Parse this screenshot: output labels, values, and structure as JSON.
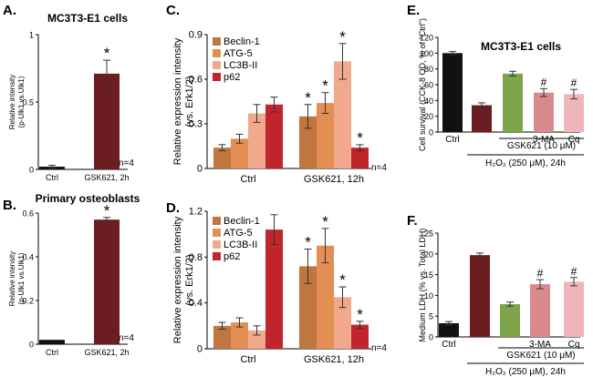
{
  "colors": {
    "black": "#111111",
    "maroon": "#6b1d22",
    "green": "#7ea54b",
    "pink": "#d98a8f",
    "lightpink": "#eeb6b8",
    "beclin": "#c0763f",
    "atg5": "#e38f54",
    "lc3b": "#f1a98d",
    "p62": "#c0252d",
    "error": "#333333"
  },
  "chart_data": [
    {
      "id": "A",
      "type": "bar",
      "panel_label": "A.",
      "title": "MC3T3-E1 cells",
      "ylabel": [
        "Relative intensity",
        "(p-Ulk1 vs.Ulk1)"
      ],
      "ylim": [
        0,
        1
      ],
      "yticks": [
        0,
        0.5,
        1
      ],
      "categories": [
        "Ctrl",
        "GSK621, 2h"
      ],
      "values": [
        0.02,
        0.71
      ],
      "errors": [
        0.01,
        0.1
      ],
      "stars": [
        "",
        "*"
      ],
      "colors": [
        "black",
        "maroon"
      ],
      "n_label": "n=4"
    },
    {
      "id": "B",
      "type": "bar",
      "panel_label": "B.",
      "title": "Primary osteoblasts",
      "ylabel": [
        "Relative intensity",
        "(p-Ulk1 vs.Ulk1)"
      ],
      "ylim": [
        0,
        0.6
      ],
      "yticks": [
        0,
        0.2,
        0.4,
        0.6
      ],
      "categories": [
        "Ctrl",
        "GSK621, 2h"
      ],
      "values": [
        0.02,
        0.57
      ],
      "errors": [
        0.005,
        0.01
      ],
      "stars": [
        "",
        "*"
      ],
      "colors": [
        "black",
        "maroon"
      ],
      "n_label": "n=4"
    },
    {
      "id": "C",
      "type": "bar",
      "panel_label": "C.",
      "ylabel": [
        "Relative expression intensity",
        "(vs. Erk1/2)"
      ],
      "ylim": [
        0,
        0.9
      ],
      "yticks": [
        0,
        0.3,
        0.6,
        0.9
      ],
      "categories": [
        "Ctrl",
        "GSK621, 12h"
      ],
      "legend": [
        "Beclin-1",
        "ATG-5",
        "LC3B-II",
        "p62"
      ],
      "series_colors": [
        "beclin",
        "atg5",
        "lc3b",
        "p62"
      ],
      "series": [
        {
          "name": "Beclin-1",
          "values": [
            0.14,
            0.35
          ],
          "errors": [
            0.02,
            0.08
          ],
          "stars": [
            "",
            "*"
          ]
        },
        {
          "name": "ATG-5",
          "values": [
            0.2,
            0.44
          ],
          "errors": [
            0.03,
            0.07
          ],
          "stars": [
            "",
            "*"
          ]
        },
        {
          "name": "LC3B-II",
          "values": [
            0.37,
            0.72
          ],
          "errors": [
            0.06,
            0.12
          ],
          "stars": [
            "",
            "*"
          ]
        },
        {
          "name": "p62",
          "values": [
            0.43,
            0.14
          ],
          "errors": [
            0.05,
            0.02
          ],
          "stars": [
            "",
            "*"
          ]
        }
      ],
      "n_label": "n=4"
    },
    {
      "id": "D",
      "type": "bar",
      "panel_label": "D.",
      "ylabel": [
        "Relative expression intensity",
        "(vs. Erk1/2)"
      ],
      "ylim": [
        0,
        1.2
      ],
      "yticks": [
        0,
        0.4,
        0.8,
        1.2
      ],
      "categories": [
        "Ctrl",
        "GSK621, 12h"
      ],
      "legend": [
        "Beclin-1",
        "ATG-5",
        "LC3B-II",
        "p62"
      ],
      "series_colors": [
        "beclin",
        "atg5",
        "lc3b",
        "p62"
      ],
      "series": [
        {
          "name": "Beclin-1",
          "values": [
            0.2,
            0.72
          ],
          "errors": [
            0.03,
            0.15
          ],
          "stars": [
            "",
            "*"
          ]
        },
        {
          "name": "ATG-5",
          "values": [
            0.23,
            0.9
          ],
          "errors": [
            0.04,
            0.15
          ],
          "stars": [
            "",
            "*"
          ]
        },
        {
          "name": "LC3B-II",
          "values": [
            0.16,
            0.45
          ],
          "errors": [
            0.04,
            0.09
          ],
          "stars": [
            "",
            "*"
          ]
        },
        {
          "name": "p62",
          "values": [
            1.04,
            0.21
          ],
          "errors": [
            0.13,
            0.03
          ],
          "stars": [
            "",
            "*"
          ]
        }
      ],
      "n_label": "n=4"
    },
    {
      "id": "E",
      "type": "bar",
      "panel_label": "E.",
      "title": "MC3T3-E1 cells",
      "ylabel": [
        "Cell survival (CCK-8 OD, % of \"Ctrl\")"
      ],
      "ylim": [
        0,
        120
      ],
      "yticks": [
        0,
        20,
        40,
        60,
        80,
        100,
        120
      ],
      "categories": [
        "Ctrl",
        "",
        "",
        "3-MA",
        "Cq"
      ],
      "values": [
        100,
        34,
        74,
        50,
        48
      ],
      "errors": [
        2,
        3,
        3,
        5,
        6
      ],
      "stars": [
        "",
        "",
        "",
        "#",
        "#"
      ],
      "colors": [
        "black",
        "maroon",
        "green",
        "pink",
        "lightpink"
      ],
      "treatment_label": "GSK621 (10 μM)",
      "stress_label": "H₂O₂ (250 μM), 24h"
    },
    {
      "id": "F",
      "type": "bar",
      "panel_label": "F.",
      "ylabel": [
        "Medium LDH (% vs. Total LDH)"
      ],
      "ylim": [
        0,
        25
      ],
      "yticks": [
        0,
        5,
        10,
        15,
        20,
        25
      ],
      "categories": [
        "Ctrl",
        "",
        "",
        "3-MA",
        "Cq"
      ],
      "values": [
        3.3,
        19.7,
        7.9,
        12.7,
        13.3
      ],
      "errors": [
        0.4,
        0.5,
        0.5,
        1.1,
        1.0
      ],
      "stars": [
        "",
        "",
        "",
        "#",
        "#"
      ],
      "colors": [
        "black",
        "maroon",
        "green",
        "pink",
        "lightpink"
      ],
      "treatment_label": "GSK621 (10 μM)",
      "stress_label": "H₂O₂ (250 μM), 24h"
    }
  ]
}
